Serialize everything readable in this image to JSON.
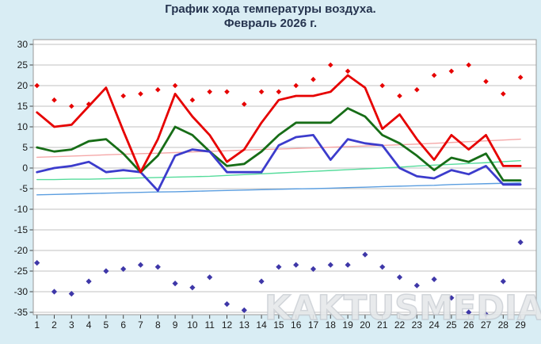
{
  "page": {
    "background": "#d9edf4",
    "watermark": "KAKTUSMEDIA"
  },
  "chart_data": {
    "type": "line",
    "title": "График хода температуры воздуха.",
    "subtitle": "Февраль 2026 г.",
    "xlabel": "",
    "ylabel": "",
    "x": [
      1,
      2,
      3,
      4,
      5,
      6,
      7,
      8,
      9,
      10,
      11,
      12,
      13,
      14,
      15,
      16,
      17,
      18,
      19,
      20,
      21,
      22,
      23,
      24,
      25,
      26,
      27,
      28,
      29
    ],
    "ylim": [
      -35,
      30
    ],
    "ytick_step": 5,
    "grid": "horizontal",
    "legend": "none",
    "colors": {
      "background": "#d9edf4",
      "plot_background": "#ffffff",
      "gridline": "#c2c2c2",
      "plot_border": "#999999",
      "axis_text": "#1a1a1a",
      "title_text": "#26344f"
    },
    "series": [
      {
        "name": "norm-max-line",
        "kind": "line",
        "color": "#f5a8a8",
        "width": 1.4,
        "values": [
          2.6,
          2.75,
          2.9,
          3.05,
          3.2,
          3.35,
          3.5,
          3.6,
          3.75,
          3.9,
          4.05,
          4.2,
          4.35,
          4.5,
          4.6,
          4.75,
          4.9,
          5.05,
          5.2,
          5.35,
          5.5,
          5.65,
          5.8,
          6.0,
          6.2,
          6.4,
          6.6,
          6.8,
          7.0
        ]
      },
      {
        "name": "norm-mean-line",
        "kind": "line",
        "color": "#55dc9b",
        "width": 1.4,
        "values": [
          -2.8,
          -2.8,
          -2.7,
          -2.7,
          -2.6,
          -2.5,
          -2.4,
          -2.3,
          -2.2,
          -2.1,
          -2.0,
          -1.8,
          -1.6,
          -1.4,
          -1.2,
          -1.0,
          -0.8,
          -0.6,
          -0.4,
          -0.2,
          0,
          0.2,
          0.5,
          0.7,
          0.9,
          1.1,
          1.3,
          1.55,
          1.8
        ]
      },
      {
        "name": "norm-min-line",
        "kind": "line",
        "color": "#5b9ee0",
        "width": 1.4,
        "values": [
          -6.5,
          -6.4,
          -6.3,
          -6.2,
          -6.1,
          -6.0,
          -5.9,
          -5.8,
          -5.75,
          -5.65,
          -5.55,
          -5.45,
          -5.35,
          -5.25,
          -5.15,
          -5.05,
          -5.0,
          -4.9,
          -4.75,
          -4.65,
          -4.5,
          -4.4,
          -4.3,
          -4.2,
          -4.0,
          -3.9,
          -3.8,
          -3.7,
          -3.6
        ]
      },
      {
        "name": "mean-temperature-line",
        "kind": "line",
        "color": "#176d17",
        "width": 2.8,
        "values": [
          5,
          4,
          4.5,
          6.5,
          7,
          3.5,
          -1,
          3,
          10,
          8,
          4,
          0.5,
          1,
          4,
          8,
          11,
          11,
          11,
          14.5,
          12.5,
          8,
          6,
          3,
          -0.5,
          2.5,
          1.5,
          3.5,
          -3,
          -3
        ]
      },
      {
        "name": "min-temperature-line",
        "kind": "line",
        "color": "#3c3ccc",
        "width": 2.8,
        "values": [
          -1,
          0,
          0.5,
          1.5,
          -1,
          -0.5,
          -1,
          -5.5,
          3,
          4.5,
          4,
          -1,
          -1,
          -1,
          5.5,
          7.5,
          8,
          2,
          7,
          6,
          5.5,
          0,
          -2,
          -2.5,
          -0.5,
          -1.5,
          0.5,
          -4,
          -4
        ]
      },
      {
        "name": "max-temperature-line",
        "kind": "line",
        "color": "#e60000",
        "width": 2.8,
        "values": [
          13.5,
          10,
          10.5,
          15,
          19.5,
          9,
          -1,
          7,
          18,
          12.5,
          8,
          1.5,
          4.5,
          11,
          16.5,
          17.5,
          17.5,
          18.5,
          22.5,
          19.5,
          9.5,
          13,
          7,
          2,
          8,
          4.5,
          8,
          0.5,
          0.5
        ]
      },
      {
        "name": "record-max-dots",
        "kind": "dots",
        "color": "#e60000",
        "marker_size": 3.3,
        "values": [
          20,
          16.5,
          15,
          15.5,
          null,
          17.5,
          18,
          19,
          20,
          16.5,
          18.5,
          18.5,
          15.5,
          18.5,
          18.5,
          20,
          21.5,
          25,
          23.5,
          null,
          20,
          17.5,
          19,
          22.5,
          23.5,
          25,
          21,
          18,
          22
        ]
      },
      {
        "name": "record-min-dots",
        "kind": "dots",
        "color": "#3e37a8",
        "marker_size": 3.6,
        "values": [
          -23,
          -30,
          -30.5,
          -27.5,
          -25,
          -24.5,
          -23.5,
          -24,
          -28,
          -29,
          -26.5,
          -33,
          -34.5,
          -27.5,
          -24,
          -23.5,
          -24.5,
          -23.5,
          -23.5,
          -21,
          -24,
          -26.5,
          -28.5,
          -27,
          -31.5,
          -35,
          -35.5,
          -27.5,
          -18
        ]
      }
    ]
  }
}
